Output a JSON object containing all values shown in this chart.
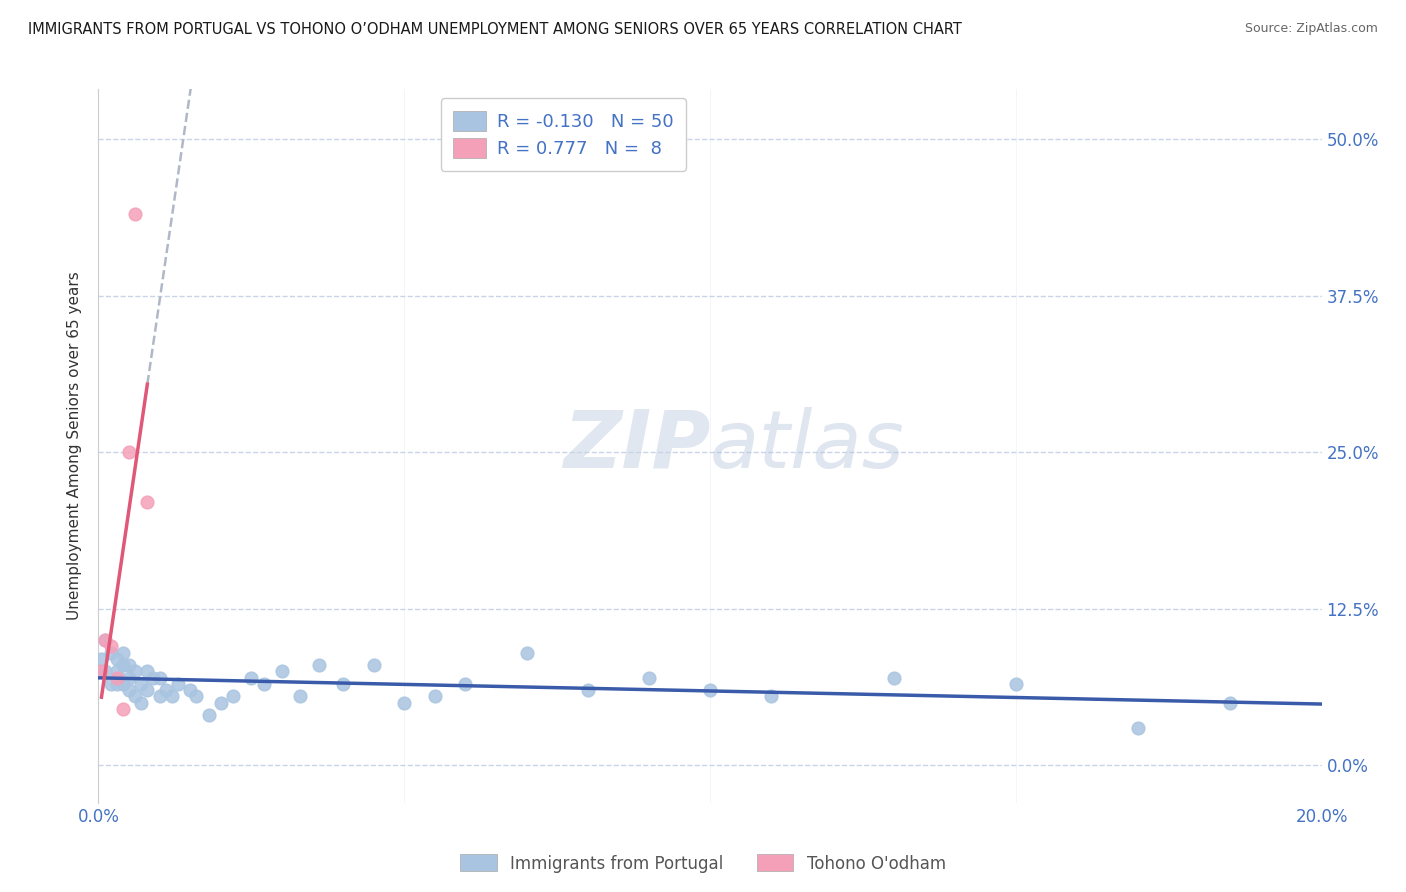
{
  "title": "IMMIGRANTS FROM PORTUGAL VS TOHONO O’ODHAM UNEMPLOYMENT AMONG SENIORS OVER 65 YEARS CORRELATION CHART",
  "source": "Source: ZipAtlas.com",
  "ylabel": "Unemployment Among Seniors over 65 years",
  "xlim": [
    0.0,
    0.2
  ],
  "ylim": [
    -0.03,
    0.54
  ],
  "ytick_vals": [
    0.0,
    0.125,
    0.25,
    0.375,
    0.5
  ],
  "ytick_labels": [
    "0.0%",
    "12.5%",
    "25.0%",
    "37.5%",
    "50.0%"
  ],
  "xtick_vals": [
    0.0,
    0.2
  ],
  "xtick_labels": [
    "0.0%",
    "20.0%"
  ],
  "portugal_x": [
    0.0005,
    0.001,
    0.001,
    0.002,
    0.002,
    0.003,
    0.003,
    0.003,
    0.004,
    0.004,
    0.004,
    0.005,
    0.005,
    0.005,
    0.006,
    0.006,
    0.007,
    0.007,
    0.008,
    0.008,
    0.009,
    0.01,
    0.01,
    0.011,
    0.012,
    0.013,
    0.015,
    0.016,
    0.018,
    0.02,
    0.022,
    0.025,
    0.027,
    0.03,
    0.033,
    0.036,
    0.04,
    0.045,
    0.05,
    0.055,
    0.06,
    0.07,
    0.08,
    0.09,
    0.1,
    0.11,
    0.13,
    0.15,
    0.17,
    0.185
  ],
  "portugal_y": [
    0.085,
    0.075,
    0.1,
    0.065,
    0.09,
    0.075,
    0.085,
    0.065,
    0.08,
    0.09,
    0.065,
    0.07,
    0.08,
    0.06,
    0.055,
    0.075,
    0.065,
    0.05,
    0.075,
    0.06,
    0.07,
    0.055,
    0.07,
    0.06,
    0.055,
    0.065,
    0.06,
    0.055,
    0.04,
    0.05,
    0.055,
    0.07,
    0.065,
    0.075,
    0.055,
    0.08,
    0.065,
    0.08,
    0.05,
    0.055,
    0.065,
    0.09,
    0.06,
    0.07,
    0.06,
    0.055,
    0.07,
    0.065,
    0.03,
    0.05
  ],
  "tohono_x": [
    0.0005,
    0.001,
    0.002,
    0.003,
    0.004,
    0.005,
    0.006,
    0.008
  ],
  "tohono_y": [
    0.075,
    0.1,
    0.095,
    0.07,
    0.045,
    0.25,
    0.44,
    0.21
  ],
  "portugal_color": "#a8c4e0",
  "tohono_color": "#f4a0b8",
  "portugal_line_color": "#3a5baa",
  "tohono_line_color": "#e05878",
  "portugal_R": -0.13,
  "portugal_N": 50,
  "tohono_R": 0.777,
  "tohono_N": 8,
  "watermark_zip": "ZIP",
  "watermark_atlas": "atlas",
  "background_color": "#ffffff",
  "grid_color": "#c8d4e8",
  "axis_color": "#4472c4"
}
